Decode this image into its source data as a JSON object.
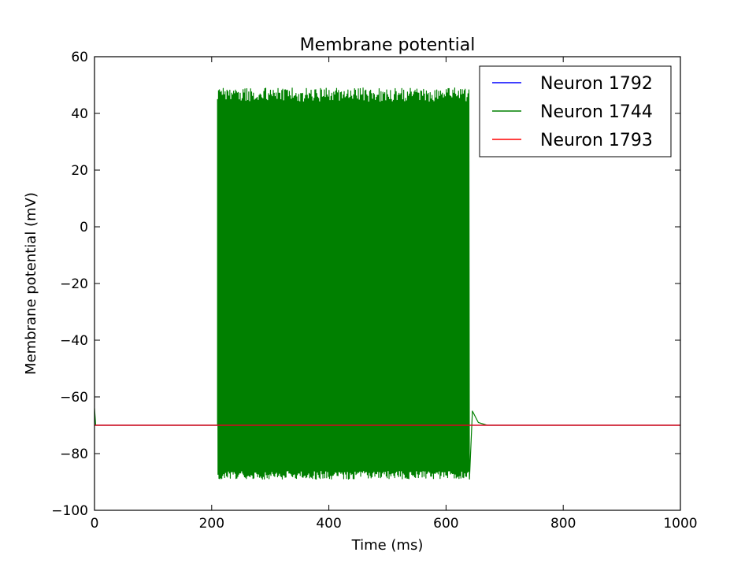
{
  "chart_data": {
    "type": "line",
    "title": "Membrane potential",
    "xlabel": "Time (ms)",
    "ylabel": "Membrane potential (mV)",
    "xlim": [
      0,
      1000
    ],
    "ylim": [
      -100,
      60
    ],
    "xticks": [
      0,
      200,
      400,
      600,
      800,
      1000
    ],
    "yticks": [
      -100,
      -80,
      -60,
      -40,
      -20,
      0,
      20,
      40,
      60
    ],
    "xtick_labels": [
      "0",
      "200",
      "400",
      "600",
      "800",
      "1000"
    ],
    "ytick_labels": [
      "−100",
      "−80",
      "−60",
      "−40",
      "−20",
      "0",
      "20",
      "40",
      "60"
    ],
    "legend_position": "top-right",
    "series": [
      {
        "name": "Neuron 1792",
        "color": "#0000ff",
        "x": [
          0,
          1000
        ],
        "y": [
          -70,
          -70
        ]
      },
      {
        "name": "Neuron 1744",
        "color": "#008000",
        "resting_potential": -70,
        "spiking_window_ms": [
          210,
          640
        ],
        "spike_peak_range_mv": [
          44,
          49
        ],
        "spike_trough_range_mv": [
          -89,
          -86
        ],
        "x": [
          0,
          2,
          5,
          210,
          640,
          645,
          655,
          670,
          1000
        ],
        "y": [
          -64,
          -70,
          -70,
          -70,
          -89,
          -65,
          -69,
          -70,
          -70
        ]
      },
      {
        "name": "Neuron 1793",
        "color": "#ff0000",
        "x": [
          0,
          1000
        ],
        "y": [
          -70,
          -70
        ]
      }
    ]
  }
}
